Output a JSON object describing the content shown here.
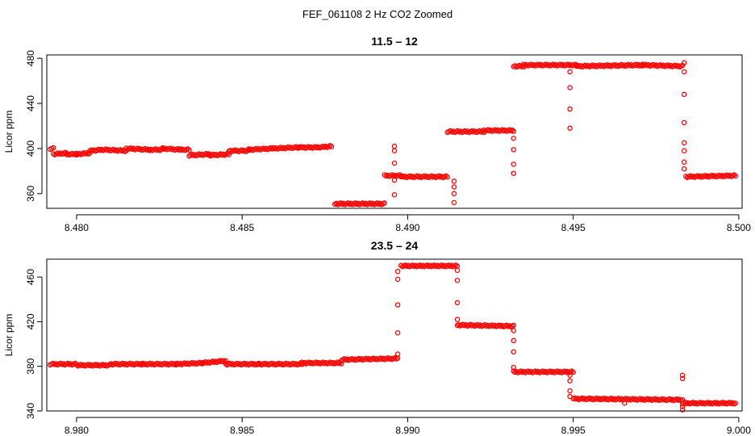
{
  "figure": {
    "title": "FEF_061108  2 Hz CO2 Zoomed",
    "marker_color": "#ff0000",
    "axis_color": "#000000",
    "background": "#ffffff"
  },
  "chart_data": [
    {
      "type": "scatter",
      "title": "11.5 – 12",
      "xlabel": "",
      "ylabel": "Licor ppm",
      "xlim": [
        8.4791,
        8.5001
      ],
      "ylim": [
        347,
        483
      ],
      "xticks": [
        "8.480",
        "8.485",
        "8.490",
        "8.495",
        "8.500"
      ],
      "xtick_values": [
        8.48,
        8.485,
        8.49,
        8.495,
        8.5
      ],
      "yticks": [
        "360",
        "400",
        "440",
        "480"
      ],
      "ytick_values": [
        360,
        400,
        440,
        480
      ],
      "grid": false,
      "series": [
        {
          "marker": "open-circle",
          "color": "#ff0000",
          "segments": [
            {
              "x": [
                8.4792,
                8.4793
              ],
              "y": [
                400,
                400
              ]
            },
            {
              "x": [
                8.4793,
                8.4797
              ],
              "y": [
                395,
                396
              ]
            },
            {
              "x": [
                8.4797,
                8.48
              ],
              "y": [
                395,
                395
              ]
            },
            {
              "x": [
                8.48,
                8.4804
              ],
              "y": [
                395,
                396
              ]
            },
            {
              "x": [
                8.4804,
                8.4808
              ],
              "y": [
                398,
                399
              ]
            },
            {
              "x": [
                8.4808,
                8.4815
              ],
              "y": [
                399,
                398
              ]
            },
            {
              "x": [
                8.4815,
                8.4822
              ],
              "y": [
                400,
                399
              ]
            },
            {
              "x": [
                8.4822,
                8.4826
              ],
              "y": [
                399,
                399
              ]
            },
            {
              "x": [
                8.4826,
                8.4831
              ],
              "y": [
                400,
                399
              ]
            },
            {
              "x": [
                8.4831,
                8.4834
              ],
              "y": [
                399,
                399
              ]
            },
            {
              "x": [
                8.4834,
                8.484
              ],
              "y": [
                394,
                395
              ]
            },
            {
              "x": [
                8.484,
                8.4846
              ],
              "y": [
                394,
                395
              ]
            },
            {
              "x": [
                8.4846,
                8.4852
              ],
              "y": [
                398,
                398
              ]
            },
            {
              "x": [
                8.4852,
                8.4859
              ],
              "y": [
                399,
                400
              ]
            },
            {
              "x": [
                8.4859,
                8.4867
              ],
              "y": [
                400,
                401
              ]
            },
            {
              "x": [
                8.4867,
                8.4873
              ],
              "y": [
                401,
                401
              ]
            },
            {
              "x": [
                8.4873,
                8.4877
              ],
              "y": [
                401,
                402
              ]
            },
            {
              "x": [
                8.4878,
                8.4893
              ],
              "y": [
                351,
                351
              ]
            },
            {
              "x": [
                8.4893,
                8.4898
              ],
              "y": [
                376,
                376
              ]
            },
            {
              "x": [
                8.4898,
                8.4912
              ],
              "y": [
                375,
                375
              ]
            },
            {
              "x": [
                8.4912,
                8.4923
              ],
              "y": [
                415,
                415
              ]
            },
            {
              "x": [
                8.4923,
                8.4932
              ],
              "y": [
                416,
                416
              ]
            },
            {
              "x": [
                8.4932,
                8.4935
              ],
              "y": [
                473,
                473
              ]
            },
            {
              "x": [
                8.4935,
                8.4951
              ],
              "y": [
                474,
                474
              ]
            },
            {
              "x": [
                8.4951,
                8.4971
              ],
              "y": [
                473,
                474
              ]
            },
            {
              "x": [
                8.4971,
                8.4983
              ],
              "y": [
                474,
                473
              ]
            },
            {
              "x": [
                8.4984,
                8.4999
              ],
              "y": [
                375,
                376
              ]
            }
          ],
          "transitions": [
            {
              "x": 8.4896,
              "y": [
                402,
                398,
                387,
                372,
                359
              ]
            },
            {
              "x": 8.4914,
              "y": [
                352,
                360,
                366,
                371
              ]
            },
            {
              "x": 8.4932,
              "y": [
                378,
                386,
                399,
                409
              ]
            },
            {
              "x": 8.4949,
              "y": [
                418,
                435,
                454,
                468
              ]
            },
            {
              "x": 8.49835,
              "y": [
                476,
                468,
                448,
                423,
                405,
                398,
                388,
                382
              ]
            }
          ]
        }
      ]
    },
    {
      "type": "scatter",
      "title": "23.5 – 24",
      "xlabel": "",
      "ylabel": "Licor ppm",
      "xlim": [
        8.9791,
        9.0001
      ],
      "ylim": [
        340,
        476
      ],
      "xticks": [
        "8.980",
        "8.985",
        "8.990",
        "8.995",
        "9.000"
      ],
      "xtick_values": [
        8.98,
        8.985,
        8.99,
        8.995,
        9.0
      ],
      "yticks": [
        "340",
        "380",
        "420",
        "460"
      ],
      "ytick_values": [
        340,
        380,
        420,
        460
      ],
      "grid": false,
      "series": [
        {
          "marker": "open-circle",
          "color": "#ff0000",
          "segments": [
            {
              "x": [
                8.9792,
                8.98
              ],
              "y": [
                382,
                382
              ]
            },
            {
              "x": [
                8.98,
                8.981
              ],
              "y": [
                381,
                381
              ]
            },
            {
              "x": [
                8.981,
                8.982
              ],
              "y": [
                382,
                382
              ]
            },
            {
              "x": [
                8.982,
                8.983
              ],
              "y": [
                382,
                382
              ]
            },
            {
              "x": [
                8.983,
                8.9838
              ],
              "y": [
                382,
                383
              ]
            },
            {
              "x": [
                8.9838,
                8.9845
              ],
              "y": [
                383,
                385
              ]
            },
            {
              "x": [
                8.9845,
                8.9855
              ],
              "y": [
                382,
                382
              ]
            },
            {
              "x": [
                8.9855,
                8.9868
              ],
              "y": [
                382,
                382
              ]
            },
            {
              "x": [
                8.9868,
                8.9874
              ],
              "y": [
                383,
                383
              ]
            },
            {
              "x": [
                8.9874,
                8.988
              ],
              "y": [
                383,
                383
              ]
            },
            {
              "x": [
                8.988,
                8.9897
              ],
              "y": [
                386,
                387
              ]
            },
            {
              "x": [
                8.9898,
                8.9915
              ],
              "y": [
                470,
                470
              ]
            },
            {
              "x": [
                8.9915,
                8.9932
              ],
              "y": [
                417,
                416
              ]
            },
            {
              "x": [
                8.9932,
                8.995
              ],
              "y": [
                375,
                375
              ]
            },
            {
              "x": [
                8.995,
                8.9983
              ],
              "y": [
                351,
                350
              ]
            },
            {
              "x": [
                8.9983,
                8.9999
              ],
              "y": [
                347,
                347
              ]
            }
          ],
          "transitions": [
            {
              "x": 8.9897,
              "y": [
                391,
                410,
                435,
                458,
                465
              ]
            },
            {
              "x": 8.9915,
              "y": [
                466,
                457,
                437,
                422
              ]
            },
            {
              "x": 8.9932,
              "y": [
                412,
                403,
                393,
                379
              ]
            },
            {
              "x": 8.9949,
              "y": [
                372,
                367,
                358,
                353
              ]
            },
            {
              "x": 8.99655,
              "y": [
                347
              ]
            },
            {
              "x": 8.9983,
              "y": [
                372,
                369,
                344,
                341
              ]
            }
          ]
        }
      ]
    }
  ]
}
